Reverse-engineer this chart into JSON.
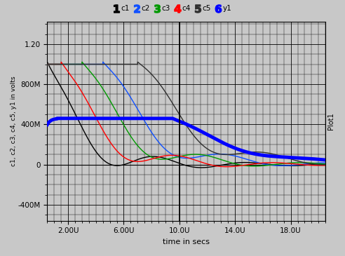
{
  "xlabel": "time in secs",
  "ylabel_left": "c1, c2, c3, c4, c5, y1 in volts",
  "ylabel_right": "Plot1",
  "xtick_labels": [
    "2.00U",
    "6.00U",
    "10.0U",
    "14.0U",
    "18.0U"
  ],
  "ytick_labels": [
    "-400M",
    "0",
    "400M",
    "800M",
    "1.20"
  ],
  "ytick_vals": [
    -0.4,
    0.0,
    0.4,
    0.8,
    1.2
  ],
  "xtick_vals": [
    2e-06,
    6e-06,
    1e-05,
    1.4e-05,
    1.8e-05
  ],
  "bg_color": "#c8c8c8",
  "xlim": [
    5e-07,
    2.05e-05
  ],
  "ylim": [
    -0.56,
    1.42
  ],
  "vline_x": 1e-05,
  "c1_color": "#000000",
  "c2_color": "#1050ff",
  "c3_color": "#009900",
  "c4_color": "#ff0000",
  "c5_color": "#000000",
  "y1_color": "#0000ff",
  "thin_lw": 1.0,
  "thick_lw": 3.5,
  "legend_labels": [
    "c1",
    "c2",
    "c3",
    "c4",
    "c5",
    "y1"
  ],
  "legend_colors": [
    "#000000",
    "#1050ff",
    "#009900",
    "#ff0000",
    "#303030",
    "#0000ff"
  ],
  "legend_nums": [
    "1",
    "2",
    "3",
    "4",
    "5",
    "6"
  ],
  "legend_num_colors": [
    "#ffffff",
    "#ffffff",
    "#ffffff",
    "#ffffff",
    "#ffffff",
    "#ffffff"
  ],
  "legend_bg_colors": [
    "#000000",
    "#1050ff",
    "#009900",
    "#ff0000",
    "#303030",
    "#0000ff"
  ]
}
